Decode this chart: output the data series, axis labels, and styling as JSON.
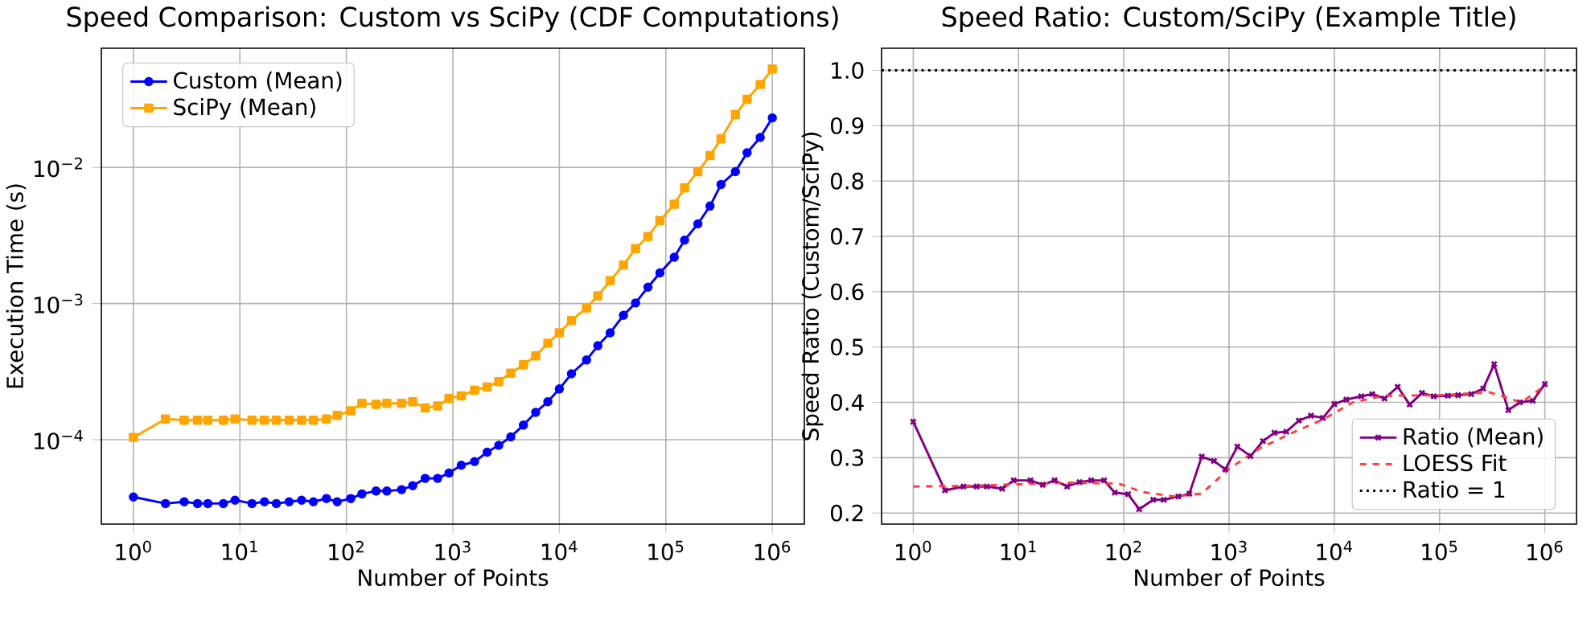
{
  "chart_data": [
    {
      "type": "line",
      "title": "Speed Comparison: Custom vs SciPy (CDF Computations)",
      "xlabel": "Number of Points",
      "ylabel": "Execution Time (s)",
      "log": "xy",
      "grid": true,
      "legend": "top left",
      "xlim": [
        0.5,
        2000000
      ],
      "ylim": [
        2.4e-05,
        0.075
      ],
      "xticks": [
        {
          "value": 1,
          "label": "10$^{0}$"
        },
        {
          "value": 10,
          "label": "10$^{1}$"
        },
        {
          "value": 100,
          "label": "10$^{2}$"
        },
        {
          "value": 1000,
          "label": "10$^{3}$"
        },
        {
          "value": 10000,
          "label": "10$^{4}$"
        },
        {
          "value": 100000,
          "label": "10$^{5}$"
        },
        {
          "value": 1000000,
          "label": "10$^{6}$"
        }
      ],
      "yticks": [
        {
          "value": 0.0001,
          "label": "10$^{−4}$"
        },
        {
          "value": 0.001,
          "label": "10$^{−3}$"
        },
        {
          "value": 0.01,
          "label": "10$^{−2}$"
        }
      ],
      "x": [
        1,
        2,
        3,
        4,
        5,
        7,
        9,
        13,
        17,
        22,
        29,
        38,
        49,
        65,
        82,
        110,
        140,
        190,
        240,
        330,
        420,
        550,
        720,
        920,
        1200,
        1600,
        2100,
        2700,
        3500,
        4600,
        6000,
        7800,
        10000,
        13000,
        18000,
        23000,
        30000,
        40000,
        52000,
        68000,
        88000,
        120000,
        150000,
        200000,
        260000,
        330000,
        450000,
        580000,
        770000,
        1000000
      ],
      "series": [
        {
          "name": "Custom (Mean)",
          "color": "#0000ff",
          "marker": "circle",
          "values": [
            3.8e-05,
            3.4e-05,
            3.5e-05,
            3.4e-05,
            3.4e-05,
            3.4e-05,
            3.6e-05,
            3.4e-05,
            3.5e-05,
            3.4e-05,
            3.5e-05,
            3.6e-05,
            3.5e-05,
            3.7e-05,
            3.5e-05,
            3.7e-05,
            4e-05,
            4.2e-05,
            4.2e-05,
            4.3e-05,
            4.6e-05,
            5.2e-05,
            5.2e-05,
            5.7e-05,
            6.5e-05,
            6.9e-05,
            8.1e-05,
            9.1e-05,
            0.000105,
            0.000128,
            0.000159,
            0.00019,
            0.000236,
            0.000305,
            0.000385,
            0.00049,
            0.00061,
            0.00082,
            0.00101,
            0.00132,
            0.00168,
            0.00219,
            0.00292,
            0.00385,
            0.0052,
            0.0075,
            0.0093,
            0.0128,
            0.0166,
            0.0231
          ]
        },
        {
          "name": "SciPy (Mean)",
          "color": "#ffa500",
          "marker": "square",
          "values": [
            0.000104,
            0.000142,
            0.000139,
            0.000139,
            0.000139,
            0.000139,
            0.000142,
            0.000139,
            0.000139,
            0.000139,
            0.000139,
            0.000139,
            0.000139,
            0.000142,
            0.000151,
            0.000163,
            0.000185,
            0.000182,
            0.000185,
            0.000185,
            0.00019,
            0.000171,
            0.000177,
            0.000201,
            0.00021,
            0.000231,
            0.000244,
            0.000267,
            0.000308,
            0.000355,
            0.000413,
            0.000512,
            0.00061,
            0.00075,
            0.00093,
            0.00114,
            0.00147,
            0.00192,
            0.00253,
            0.00311,
            0.00406,
            0.00536,
            0.00706,
            0.0093,
            0.0122,
            0.0162,
            0.0244,
            0.0316,
            0.0406,
            0.0526
          ]
        }
      ]
    },
    {
      "type": "line",
      "title": "Speed Ratio: Custom/SciPy (Example Title)",
      "xlabel": "Number of Points",
      "ylabel": "Speed Ratio (Custom/SciPy)",
      "log": "x",
      "grid": true,
      "legend": "bottom right",
      "xlim": [
        0.5,
        2000000
      ],
      "ylim": [
        0.18,
        1.04
      ],
      "xticks": [
        {
          "value": 1,
          "label": "10$^{0}$"
        },
        {
          "value": 10,
          "label": "10$^{1}$"
        },
        {
          "value": 100,
          "label": "10$^{2}$"
        },
        {
          "value": 1000,
          "label": "10$^{3}$"
        },
        {
          "value": 10000,
          "label": "10$^{4}$"
        },
        {
          "value": 100000,
          "label": "10$^{5}$"
        },
        {
          "value": 1000000,
          "label": "10$^{6}$"
        }
      ],
      "yticks": [
        {
          "value": 0.2,
          "label": "0.2"
        },
        {
          "value": 0.3,
          "label": "0.3"
        },
        {
          "value": 0.4,
          "label": "0.4"
        },
        {
          "value": 0.5,
          "label": "0.5"
        },
        {
          "value": 0.6,
          "label": "0.6"
        },
        {
          "value": 0.7,
          "label": "0.7"
        },
        {
          "value": 0.8,
          "label": "0.8"
        },
        {
          "value": 0.9,
          "label": "0.9"
        },
        {
          "value": 1.0,
          "label": "1.0"
        }
      ],
      "x": [
        1,
        2,
        3,
        4,
        5,
        7,
        9,
        13,
        17,
        22,
        29,
        38,
        49,
        65,
        82,
        110,
        140,
        190,
        240,
        330,
        420,
        550,
        720,
        920,
        1200,
        1600,
        2100,
        2700,
        3500,
        4600,
        6000,
        7800,
        10000,
        13000,
        18000,
        23000,
        30000,
        40000,
        52000,
        68000,
        88000,
        120000,
        150000,
        200000,
        260000,
        330000,
        450000,
        580000,
        770000,
        1000000
      ],
      "series": [
        {
          "name": "Ratio (Mean)",
          "color": "#800080",
          "marker": "cross",
          "values": [
            0.365,
            0.241,
            0.248,
            0.248,
            0.248,
            0.244,
            0.259,
            0.259,
            0.251,
            0.259,
            0.248,
            0.256,
            0.259,
            0.259,
            0.237,
            0.234,
            0.207,
            0.224,
            0.224,
            0.23,
            0.235,
            0.302,
            0.294,
            0.279,
            0.32,
            0.303,
            0.33,
            0.345,
            0.347,
            0.367,
            0.376,
            0.372,
            0.397,
            0.405,
            0.411,
            0.415,
            0.407,
            0.428,
            0.396,
            0.417,
            0.411,
            0.412,
            0.413,
            0.415,
            0.425,
            0.469,
            0.386,
            0.4,
            0.403,
            0.433
          ]
        },
        {
          "name": "LOESS Fit",
          "color": "#ff4040",
          "line_style": "dashed",
          "x": [
            1,
            3,
            10,
            30,
            90,
            150,
            300,
            550,
            1000,
            2000,
            4000,
            8000,
            15000,
            30000,
            100000,
            300000,
            600000,
            1000000
          ],
          "values": [
            0.248,
            0.249,
            0.252,
            0.255,
            0.253,
            0.238,
            0.23,
            0.235,
            0.28,
            0.318,
            0.345,
            0.37,
            0.4,
            0.412,
            0.413,
            0.418,
            0.4,
            0.43
          ]
        }
      ],
      "ref_lines": [
        {
          "axis": "y",
          "value": 1.0,
          "label": "Ratio = 1",
          "color": "#000000",
          "line_style": "dotted"
        }
      ]
    }
  ]
}
